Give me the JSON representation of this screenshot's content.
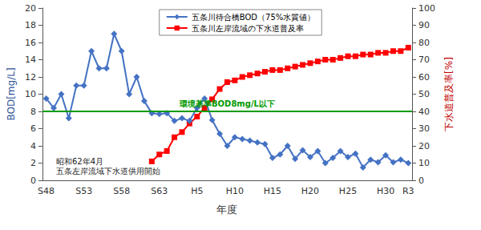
{
  "chart_data": {
    "type": "line",
    "x_label": "年度",
    "y_label": "BOD[mg/L]",
    "y2_label": "下水道普及率[%]",
    "categories": [
      "S48",
      null,
      null,
      null,
      null,
      "S53",
      null,
      null,
      null,
      null,
      "S58",
      null,
      null,
      null,
      null,
      "S63",
      null,
      null,
      null,
      null,
      "H5",
      null,
      null,
      null,
      null,
      "H10",
      null,
      null,
      null,
      null,
      "H15",
      null,
      null,
      null,
      null,
      "H20",
      null,
      null,
      null,
      null,
      "H25",
      null,
      null,
      null,
      null,
      "H30",
      null,
      null,
      "R3"
    ],
    "ylim": [
      0,
      20
    ],
    "yticks": [
      0,
      2,
      4,
      6,
      8,
      10,
      12,
      14,
      16,
      18,
      20
    ],
    "y2lim": [
      0,
      100
    ],
    "y2ticks": [
      0,
      10,
      20,
      30,
      40,
      50,
      60,
      70,
      80,
      90,
      100
    ],
    "grid": false,
    "legend": "top",
    "series": [
      {
        "name": "五条川待合橋BOD（75%水質値）",
        "color": "#4472c4",
        "marker": "diamond",
        "values": [
          9.5,
          8.4,
          10.0,
          7.2,
          11.0,
          11.0,
          15.0,
          13.0,
          13.0,
          17.0,
          15.0,
          10.0,
          12.0,
          9.2,
          7.8,
          7.7,
          7.8,
          6.9,
          7.2,
          6.9,
          8.4,
          9.5,
          7.0,
          5.4,
          4.0,
          5.0,
          4.8,
          4.6,
          4.4,
          4.2,
          2.6,
          3.0,
          4.0,
          2.5,
          3.5,
          2.7,
          3.4,
          2.0,
          2.6,
          3.4,
          2.7,
          3.1,
          1.5,
          2.4,
          2.1,
          2.9,
          2.1,
          2.4,
          2.0
        ]
      },
      {
        "name": "五条川左岸流域の下水道普及率",
        "color": "#ff0000",
        "marker": "square",
        "axis": "y2",
        "values": [
          null,
          null,
          null,
          null,
          null,
          null,
          null,
          null,
          null,
          null,
          null,
          null,
          null,
          null,
          11,
          15,
          17,
          25,
          28,
          33,
          37,
          42,
          47,
          53,
          57,
          58,
          60,
          61,
          62,
          63,
          64,
          64,
          65,
          66,
          67,
          68,
          69,
          70,
          70,
          71,
          72,
          72,
          73,
          73,
          74,
          74,
          75,
          75,
          77
        ]
      }
    ],
    "reference_line": {
      "value": 8,
      "label": "環境基準BOD8mg/L以下",
      "color": "#009a00"
    },
    "annotation": [
      "昭和62年4月",
      "五条左岸流域下水道供用開始"
    ]
  }
}
